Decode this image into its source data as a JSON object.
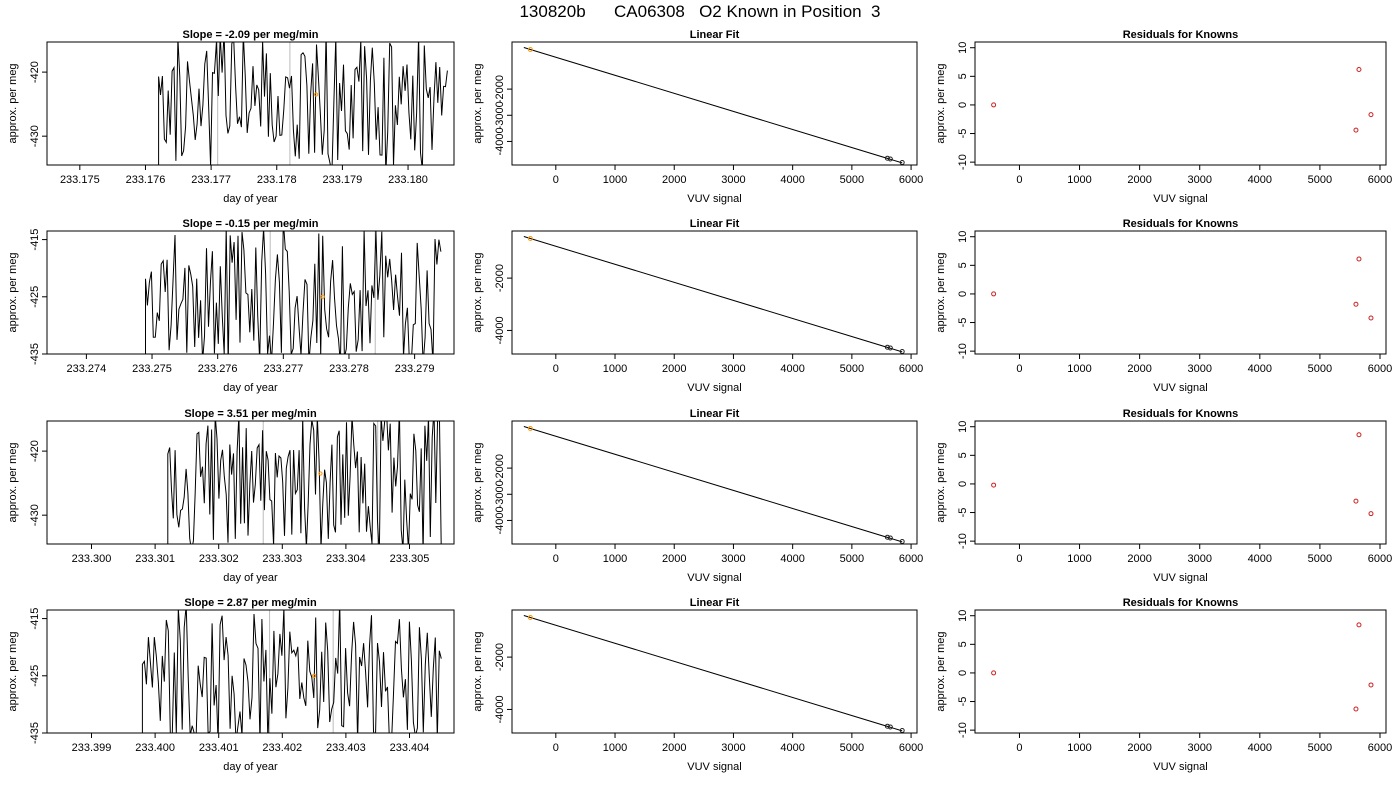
{
  "page": {
    "title_parts": [
      "130820b",
      "CA06308",
      "O2 Known in Position  3"
    ]
  },
  "colors": {
    "trace": "#000000",
    "reference_line": "#bbbbbb",
    "known_point": "#ff9900",
    "residual_point": "#cc2222"
  },
  "chart_data": [
    {
      "type": "line",
      "row": 1,
      "panel": "time-series",
      "title": "Slope =  -2.09  per meg/min",
      "xlabel": "day of year",
      "ylabel": "approx. per meg",
      "xlim": [
        233.1745,
        233.1807
      ],
      "ylim": [
        -434.5,
        -415.3
      ],
      "xticks": [
        233.175,
        233.176,
        233.177,
        233.178,
        233.179,
        233.18
      ],
      "xtick_labels": [
        "233.175",
        "233.176",
        "233.177",
        "233.178",
        "233.179",
        "233.180"
      ],
      "yticks": [
        -420,
        -430
      ],
      "ytick_labels": [
        "-420",
        "-430"
      ],
      "series_start": 233.1762,
      "series_end": 233.1806,
      "series_seed": 11,
      "reference_lines": [
        233.1771,
        233.1782
      ],
      "known_marker": [
        233.1786,
        -423.5
      ]
    },
    {
      "type": "line",
      "row": 1,
      "panel": "linear-fit",
      "title": "Linear Fit",
      "xlabel": "VUV signal",
      "ylabel": "approx. per meg",
      "xlim": [
        -740,
        6100
      ],
      "ylim": [
        -4900,
        -200
      ],
      "xticks": [
        0,
        1000,
        2000,
        3000,
        4000,
        5000,
        6000
      ],
      "xtick_labels": [
        "0",
        "1000",
        "2000",
        "3000",
        "4000",
        "5000",
        "6000"
      ],
      "yticks": [
        -2000,
        -3000,
        -4000
      ],
      "ytick_labels": [
        "-2000",
        "-3000",
        "-4000"
      ],
      "fit_line": [
        [
          -540,
          -410
        ],
        [
          5850,
          -4820
        ]
      ],
      "points": [
        [
          -430,
          -485
        ],
        [
          5600,
          -4640
        ],
        [
          5650,
          -4670
        ],
        [
          5850,
          -4805
        ]
      ]
    },
    {
      "type": "scatter",
      "row": 1,
      "panel": "residuals",
      "title": "Residuals for Knowns",
      "xlabel": "VUV signal",
      "ylabel": "approx. per meg",
      "xlim": [
        -740,
        6100
      ],
      "ylim": [
        -10.5,
        11
      ],
      "xticks": [
        0,
        1000,
        2000,
        3000,
        4000,
        5000,
        6000
      ],
      "xtick_labels": [
        "0",
        "1000",
        "2000",
        "3000",
        "4000",
        "5000",
        "6000"
      ],
      "yticks": [
        10,
        5,
        0,
        -5,
        -10
      ],
      "ytick_labels": [
        "10",
        "5",
        "0",
        "-5",
        "-10"
      ],
      "points": [
        [
          -430,
          0
        ],
        [
          5600,
          -4.4
        ],
        [
          5650,
          6.2
        ],
        [
          5850,
          -1.7
        ]
      ]
    },
    {
      "type": "line",
      "row": 2,
      "panel": "time-series",
      "title": "Slope =  -0.15  per meg/min",
      "xlabel": "day of year",
      "ylabel": "approx. per meg",
      "xlim": [
        233.2734,
        233.2796
      ],
      "ylim": [
        -435,
        -413.5
      ],
      "xticks": [
        233.274,
        233.275,
        233.276,
        233.277,
        233.278,
        233.279
      ],
      "xtick_labels": [
        "233.274",
        "233.275",
        "233.276",
        "233.277",
        "233.278",
        "233.279"
      ],
      "yticks": [
        -415,
        -425,
        -435
      ],
      "ytick_labels": [
        "-415",
        "-425",
        "-435"
      ],
      "series_start": 233.2749,
      "series_end": 233.2794,
      "series_seed": 23,
      "reference_lines": [
        233.2768,
        233.2784
      ],
      "known_marker": [
        233.2776,
        -425
      ]
    },
    {
      "type": "line",
      "row": 2,
      "panel": "linear-fit",
      "title": "Linear Fit",
      "xlabel": "VUV signal",
      "ylabel": "approx. per meg",
      "xlim": [
        -740,
        6100
      ],
      "ylim": [
        -4900,
        -200
      ],
      "xticks": [
        0,
        1000,
        2000,
        3000,
        4000,
        5000,
        6000
      ],
      "xtick_labels": [
        "0",
        "1000",
        "2000",
        "3000",
        "4000",
        "5000",
        "6000"
      ],
      "yticks": [
        -2000,
        -4000
      ],
      "ytick_labels": [
        "-2000",
        "-4000"
      ],
      "fit_line": [
        [
          -540,
          -410
        ],
        [
          5850,
          -4820
        ]
      ],
      "points": [
        [
          -430,
          -485
        ],
        [
          5600,
          -4640
        ],
        [
          5650,
          -4670
        ],
        [
          5850,
          -4805
        ]
      ]
    },
    {
      "type": "scatter",
      "row": 2,
      "panel": "residuals",
      "title": "Residuals for Knowns",
      "xlabel": "VUV signal",
      "ylabel": "approx. per meg",
      "xlim": [
        -740,
        6100
      ],
      "ylim": [
        -10.5,
        11
      ],
      "xticks": [
        0,
        1000,
        2000,
        3000,
        4000,
        5000,
        6000
      ],
      "xtick_labels": [
        "0",
        "1000",
        "2000",
        "3000",
        "4000",
        "5000",
        "6000"
      ],
      "yticks": [
        10,
        5,
        0,
        -5,
        -10
      ],
      "ytick_labels": [
        "10",
        "5",
        "0",
        "-5",
        "-10"
      ],
      "points": [
        [
          -430,
          0
        ],
        [
          5600,
          -1.8
        ],
        [
          5650,
          6.1
        ],
        [
          5850,
          -4.2
        ]
      ]
    },
    {
      "type": "line",
      "row": 3,
      "panel": "time-series",
      "title": "Slope =  3.51  per meg/min",
      "xlabel": "day of year",
      "ylabel": "approx. per meg",
      "xlim": [
        233.2993,
        233.3057
      ],
      "ylim": [
        -434.5,
        -415.3
      ],
      "xticks": [
        233.3,
        233.301,
        233.302,
        233.303,
        233.304,
        233.305
      ],
      "xtick_labels": [
        "233.300",
        "233.301",
        "233.302",
        "233.303",
        "233.304",
        "233.305"
      ],
      "yticks": [
        -420,
        -430
      ],
      "ytick_labels": [
        "-420",
        "-430"
      ],
      "series_start": 233.3012,
      "series_end": 233.3055,
      "series_seed": 37,
      "reference_lines": [
        233.3027,
        233.3045
      ],
      "known_marker": [
        233.3036,
        -423.5
      ]
    },
    {
      "type": "line",
      "row": 3,
      "panel": "linear-fit",
      "title": "Linear Fit",
      "xlabel": "VUV signal",
      "ylabel": "approx. per meg",
      "xlim": [
        -740,
        6100
      ],
      "ylim": [
        -4900,
        -200
      ],
      "xticks": [
        0,
        1000,
        2000,
        3000,
        4000,
        5000,
        6000
      ],
      "xtick_labels": [
        "0",
        "1000",
        "2000",
        "3000",
        "4000",
        "5000",
        "6000"
      ],
      "yticks": [
        -2000,
        -3000,
        -4000
      ],
      "ytick_labels": [
        "-2000",
        "-3000",
        "-4000"
      ],
      "fit_line": [
        [
          -540,
          -410
        ],
        [
          5850,
          -4820
        ]
      ],
      "points": [
        [
          -430,
          -485
        ],
        [
          5600,
          -4640
        ],
        [
          5650,
          -4670
        ],
        [
          5850,
          -4805
        ]
      ]
    },
    {
      "type": "scatter",
      "row": 3,
      "panel": "residuals",
      "title": "Residuals for Knowns",
      "xlabel": "VUV signal",
      "ylabel": "approx. per meg",
      "xlim": [
        -740,
        6100
      ],
      "ylim": [
        -10.5,
        11
      ],
      "xticks": [
        0,
        1000,
        2000,
        3000,
        4000,
        5000,
        6000
      ],
      "xtick_labels": [
        "0",
        "1000",
        "2000",
        "3000",
        "4000",
        "5000",
        "6000"
      ],
      "yticks": [
        10,
        5,
        0,
        -5,
        -10
      ],
      "ytick_labels": [
        "10",
        "5",
        "0",
        "-5",
        "-10"
      ],
      "points": [
        [
          -430,
          -0.2
        ],
        [
          5600,
          -3.0
        ],
        [
          5650,
          8.6
        ],
        [
          5850,
          -5.2
        ]
      ]
    },
    {
      "type": "line",
      "row": 4,
      "panel": "time-series",
      "title": "Slope =  2.87  per meg/min",
      "xlabel": "day of year",
      "ylabel": "approx. per meg",
      "xlim": [
        233.3983,
        233.4047
      ],
      "ylim": [
        -435,
        -413.5
      ],
      "xticks": [
        233.399,
        233.4,
        233.401,
        233.402,
        233.403,
        233.404
      ],
      "xtick_labels": [
        "233.399",
        "233.400",
        "233.401",
        "233.402",
        "233.403",
        "233.404"
      ],
      "yticks": [
        -415,
        -425,
        -435
      ],
      "ytick_labels": [
        "-415",
        "-425",
        "-435"
      ],
      "series_start": 233.3998,
      "series_end": 233.4045,
      "series_seed": 53,
      "reference_lines": [
        233.4018,
        233.4028
      ],
      "known_marker": [
        233.4025,
        -425
      ]
    },
    {
      "type": "line",
      "row": 4,
      "panel": "linear-fit",
      "title": "Linear Fit",
      "xlabel": "VUV signal",
      "ylabel": "approx. per meg",
      "xlim": [
        -740,
        6100
      ],
      "ylim": [
        -4900,
        -200
      ],
      "xticks": [
        0,
        1000,
        2000,
        3000,
        4000,
        5000,
        6000
      ],
      "xtick_labels": [
        "0",
        "1000",
        "2000",
        "3000",
        "4000",
        "5000",
        "6000"
      ],
      "yticks": [
        -2000,
        -4000
      ],
      "ytick_labels": [
        "-2000",
        "-4000"
      ],
      "fit_line": [
        [
          -540,
          -410
        ],
        [
          5850,
          -4820
        ]
      ],
      "points": [
        [
          -430,
          -485
        ],
        [
          5600,
          -4640
        ],
        [
          5650,
          -4670
        ],
        [
          5850,
          -4805
        ]
      ]
    },
    {
      "type": "scatter",
      "row": 4,
      "panel": "residuals",
      "title": "Residuals for Knowns",
      "xlabel": "VUV signal",
      "ylabel": "approx. per meg",
      "xlim": [
        -740,
        6100
      ],
      "ylim": [
        -10.5,
        11
      ],
      "xticks": [
        0,
        1000,
        2000,
        3000,
        4000,
        5000,
        6000
      ],
      "xtick_labels": [
        "0",
        "1000",
        "2000",
        "3000",
        "4000",
        "5000",
        "6000"
      ],
      "yticks": [
        10,
        5,
        0,
        -5,
        -10
      ],
      "ytick_labels": [
        "10",
        "5",
        "0",
        "-5",
        "-10"
      ],
      "points": [
        [
          -430,
          0
        ],
        [
          5600,
          -6.3
        ],
        [
          5650,
          8.4
        ],
        [
          5850,
          -2.1
        ]
      ]
    }
  ]
}
